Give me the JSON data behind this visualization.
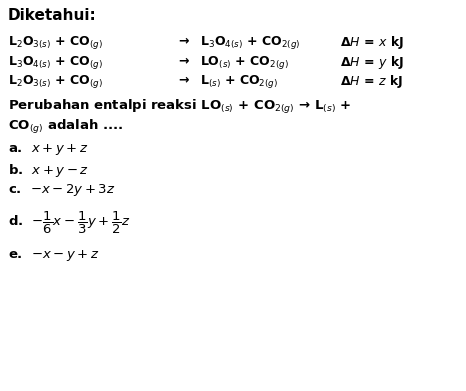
{
  "title": "Diketahui:",
  "rxn1_left": "L$_2$O$_{3(s)}$ + CO$_{(g)}$",
  "rxn1_arrow": "→",
  "rxn1_right": "L$_3$O$_{4(s)}$ + CO$_{2(g)}$",
  "rxn1_dH": "Δ$H$ = $x$ kJ",
  "rxn2_left": "L$_3$O$_{4(s)}$ + CO$_{(g)}$",
  "rxn2_arrow": "→",
  "rxn2_right": "LO$_{(s)}$ + CO$_{2(g)}$",
  "rxn2_dH": "Δ$H$ = $y$ kJ",
  "rxn3_left": "L$_2$O$_{3(s)}$ + CO$_{(g)}$",
  "rxn3_arrow": "→",
  "rxn3_right": "L$_{(s)}$ + CO$_{2(g)}$",
  "rxn3_dH": "Δ$H$ = $z$ kJ",
  "q_line1": "Perubahan entalpi reaksi LO$_{(s)}$ + CO$_{2(g)}$ → L$_{(s)}$ +",
  "q_line2": "CO$_{(g)}$ adalah ....",
  "choice_a": "a.  $x + y + z$",
  "choice_b": "b.  $x + y - z$",
  "choice_c": "c.  $-x - 2y + 3z$",
  "choice_d": "d.  $-\\dfrac{1}{6}x - \\dfrac{1}{3}y + \\dfrac{1}{2}z$",
  "choice_e": "e.  $-x - y + z$",
  "bg_color": "#ffffff",
  "text_color": "#000000",
  "fs_title": 11,
  "fs_react": 9,
  "fs_question": 9.5,
  "fs_choice": 9.5,
  "fw": "bold"
}
